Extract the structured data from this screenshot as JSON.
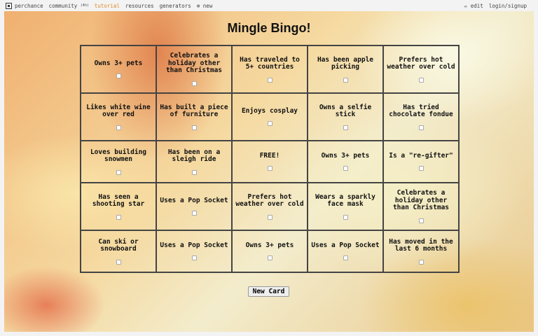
{
  "nav": {
    "logo": "perchance",
    "community": "community",
    "community_count": "(4h)",
    "tutorial": "tutorial",
    "resources": "resources",
    "generators": "generators",
    "new": "⊕ new",
    "edit": "✏ edit",
    "login": "login/signup"
  },
  "title": "Mingle Bingo!",
  "cells": [
    "Owns 3+ pets",
    "Celebrates a holiday other than Christmas",
    "Has traveled to 5+ countries",
    "Has been apple picking",
    "Prefers hot weather over cold",
    "Likes white wine over red",
    "Has built a piece of furniture",
    "Enjoys cosplay",
    "Owns a selfie stick",
    "Has tried chocolate fondue",
    "Loves building snowmen",
    "Has been on a sleigh ride",
    "FREE!",
    "Owns 3+ pets",
    "Is a \"re-gifter\"",
    "Has seen a shooting star",
    "Uses a Pop Socket",
    "Prefers hot weather over cold",
    "Wears a sparkly face mask",
    "Celebrates a holiday other than Christmas",
    "Can ski or snowboard",
    "Uses a Pop Socket",
    "Owns 3+ pets",
    "Uses a Pop Socket",
    "Has moved in the last 6 months"
  ],
  "new_card": "New Card"
}
